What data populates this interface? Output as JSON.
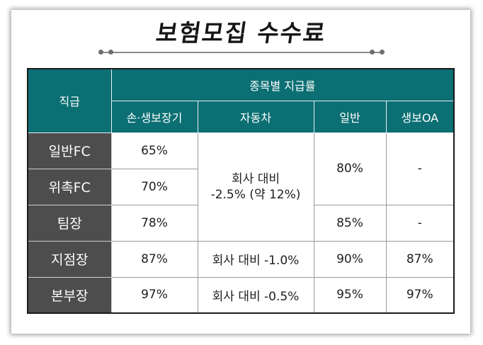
{
  "title": "보험모집 수수료",
  "table": {
    "corner": "직급",
    "group_header": "종목별 지급률",
    "columns": [
      "손·생보장기",
      "자동차",
      "일반",
      "생보OA"
    ],
    "rows": [
      {
        "rank": "일반FC",
        "long_term": "65%"
      },
      {
        "rank": "위촉FC",
        "long_term": "70%"
      },
      {
        "rank": "팀장",
        "long_term": "78%",
        "general": "85%",
        "oa": "-"
      },
      {
        "rank": "지점장",
        "long_term": "87%",
        "auto": "회사 대비 -1.0%",
        "general": "90%",
        "oa": "87%"
      },
      {
        "rank": "본부장",
        "long_term": "97%",
        "auto": "회사 대비 -0.5%",
        "general": "95%",
        "oa": "97%"
      }
    ],
    "merged": {
      "auto_top_line1": "회사 대비",
      "auto_top_line2": "-2.5% (약 12%)",
      "general_top": "80%",
      "oa_top": "-"
    }
  },
  "colors": {
    "header_teal": "#0b6f73",
    "row_header_gray": "#4d4d4d"
  }
}
